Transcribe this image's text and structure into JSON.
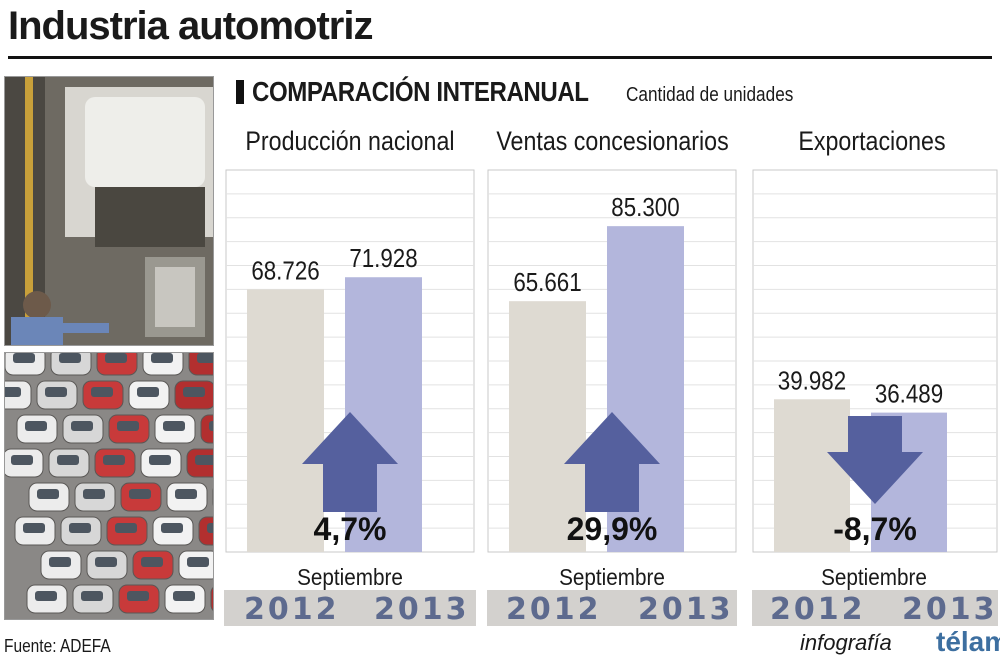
{
  "title": "Industria automotriz",
  "subtitle": "COMPARACIÓN INTERANUAL",
  "unit_label": "Cantidad de unidades",
  "footer": {
    "source": "Fuente: ADEFA",
    "credit": "infografía",
    "brand": "télam"
  },
  "colors": {
    "bar_2012": "#dedad2",
    "bar_2013": "#b3b6dc",
    "arrow": "#55609e",
    "year_text": "#5d6a8e"
  },
  "chart_data": [
    {
      "type": "bar",
      "title": "Producción nacional",
      "xlabel": "Septiembre",
      "categories": [
        "2012",
        "2013"
      ],
      "values": [
        68726,
        71928
      ],
      "value_labels": [
        "68.726",
        "71.928"
      ],
      "change": "4,7%",
      "direction": "up",
      "ylim": [
        0,
        100000
      ],
      "grid": true
    },
    {
      "type": "bar",
      "title": "Ventas concesionarios",
      "xlabel": "Septiembre",
      "categories": [
        "2012",
        "2013"
      ],
      "values": [
        65661,
        85300
      ],
      "value_labels": [
        "65.661",
        "85.300"
      ],
      "change": "29,9%",
      "direction": "up",
      "ylim": [
        0,
        100000
      ],
      "grid": true
    },
    {
      "type": "bar",
      "title": "Exportaciones",
      "xlabel": "Septiembre",
      "categories": [
        "2012",
        "2013"
      ],
      "values": [
        39982,
        36489
      ],
      "value_labels": [
        "39.982",
        "36.489"
      ],
      "change": "-8,7%",
      "direction": "down",
      "ylim": [
        0,
        100000
      ],
      "grid": true
    }
  ]
}
